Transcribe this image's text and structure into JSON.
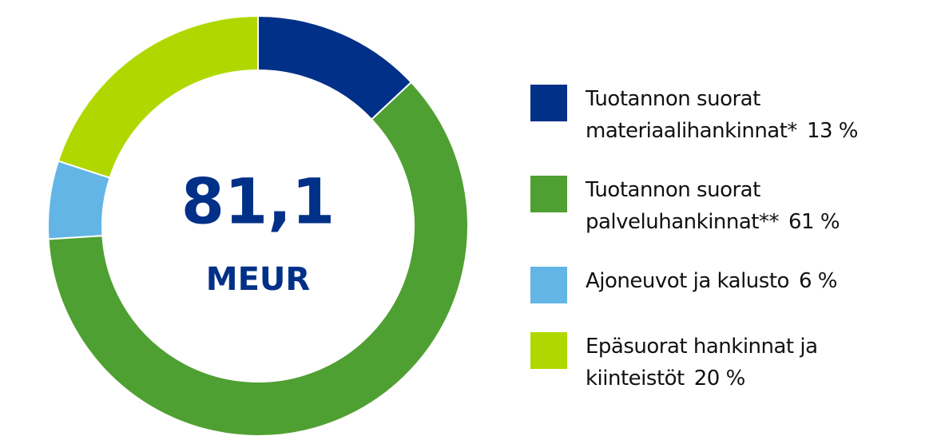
{
  "chart_data": {
    "type": "donut",
    "center_label": "81,1",
    "center_sublabel": "MEUR",
    "categories": [
      "Tuotannon suorat materiaalihankinnat*",
      "Tuotannon suorat palveluhankinnat**",
      "Ajoneuvot ja kalusto",
      "Epäsuorat hankinnat ja kiinteistöt"
    ],
    "values": [
      13,
      61,
      6,
      20
    ],
    "value_labels": [
      "13 %",
      "61 %",
      "6 %",
      "20 %"
    ],
    "colors": [
      "#003087",
      "#4fa032",
      "#62b5e5",
      "#b0d800"
    ],
    "legend": "right"
  }
}
